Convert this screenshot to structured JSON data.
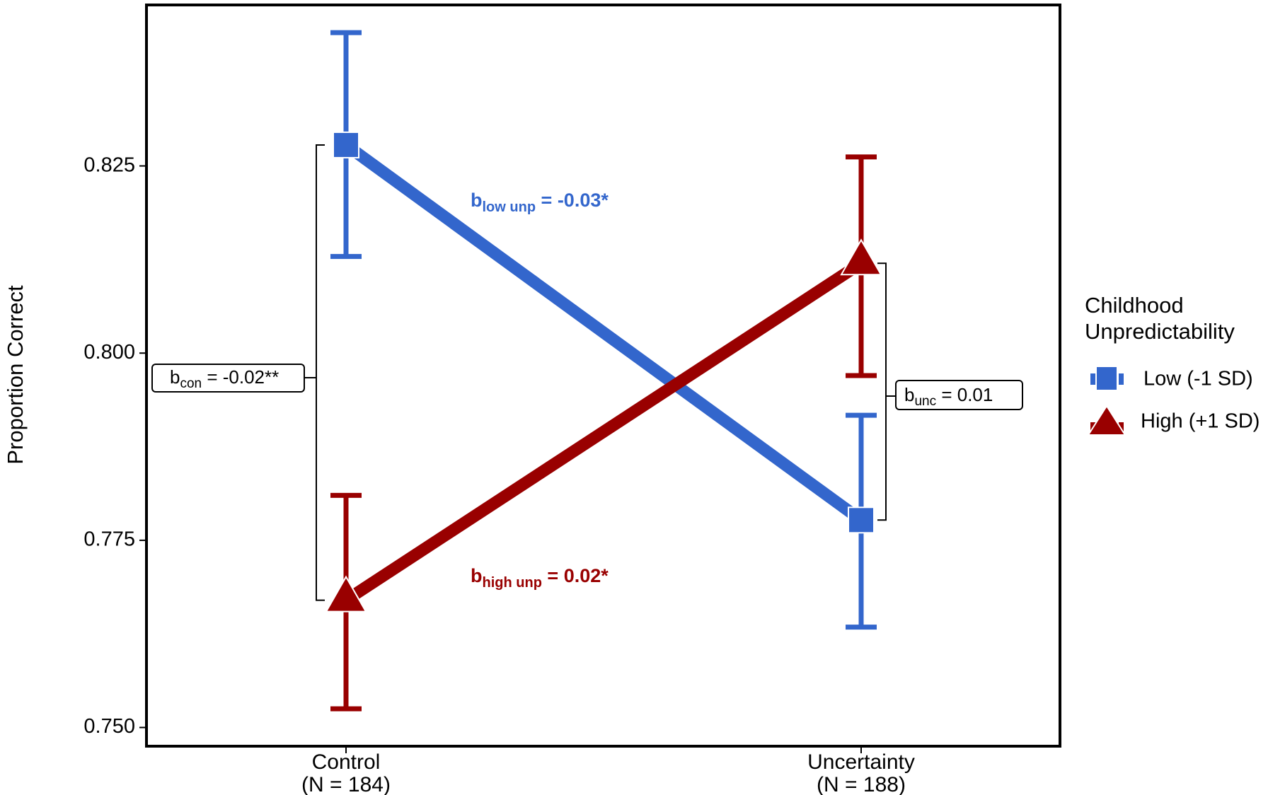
{
  "chart_data": {
    "type": "line",
    "ylabel": "Proportion Correct",
    "xlabel": "",
    "categories": [
      "Control",
      "Uncertainty"
    ],
    "category_n": [
      "(N = 184)",
      "(N = 188)"
    ],
    "ylim": [
      0.7475,
      0.8465
    ],
    "y_ticks": [
      0.75,
      0.775,
      0.8,
      0.825
    ],
    "y_tick_labels": [
      "0.750",
      "0.775",
      "0.800",
      "0.825"
    ],
    "grid": false,
    "series": [
      {
        "key": "low",
        "color": "#3366cc",
        "marker": "square",
        "values": [
          0.8278,
          0.7777
        ],
        "ci_lower": [
          0.8129,
          0.7634
        ],
        "ci_upper": [
          0.8428,
          0.7917
        ]
      },
      {
        "key": "high",
        "color": "#990000",
        "marker": "triangle",
        "values": [
          0.767,
          0.812
        ],
        "ci_lower": [
          0.7525,
          0.797
        ],
        "ci_upper": [
          0.781,
          0.8262
        ]
      }
    ],
    "annotations": {
      "slope_low": {
        "b": "b",
        "sub": "low unp",
        "rest": " = -0.03*"
      },
      "slope_high": {
        "b": "b",
        "sub": "high unp",
        "rest": " = 0.02*"
      },
      "contrast_control": {
        "b": "b",
        "sub": "con",
        "rest": " = -0.02**"
      },
      "contrast_uncertainty": {
        "b": "b",
        "sub": "unc",
        "rest": " = 0.01"
      }
    },
    "legend": {
      "title_line1": "Childhood",
      "title_line2": "Unpredictability",
      "placement": "right",
      "entries": [
        "Low (-1 SD)",
        "High (+1 SD)"
      ]
    }
  }
}
